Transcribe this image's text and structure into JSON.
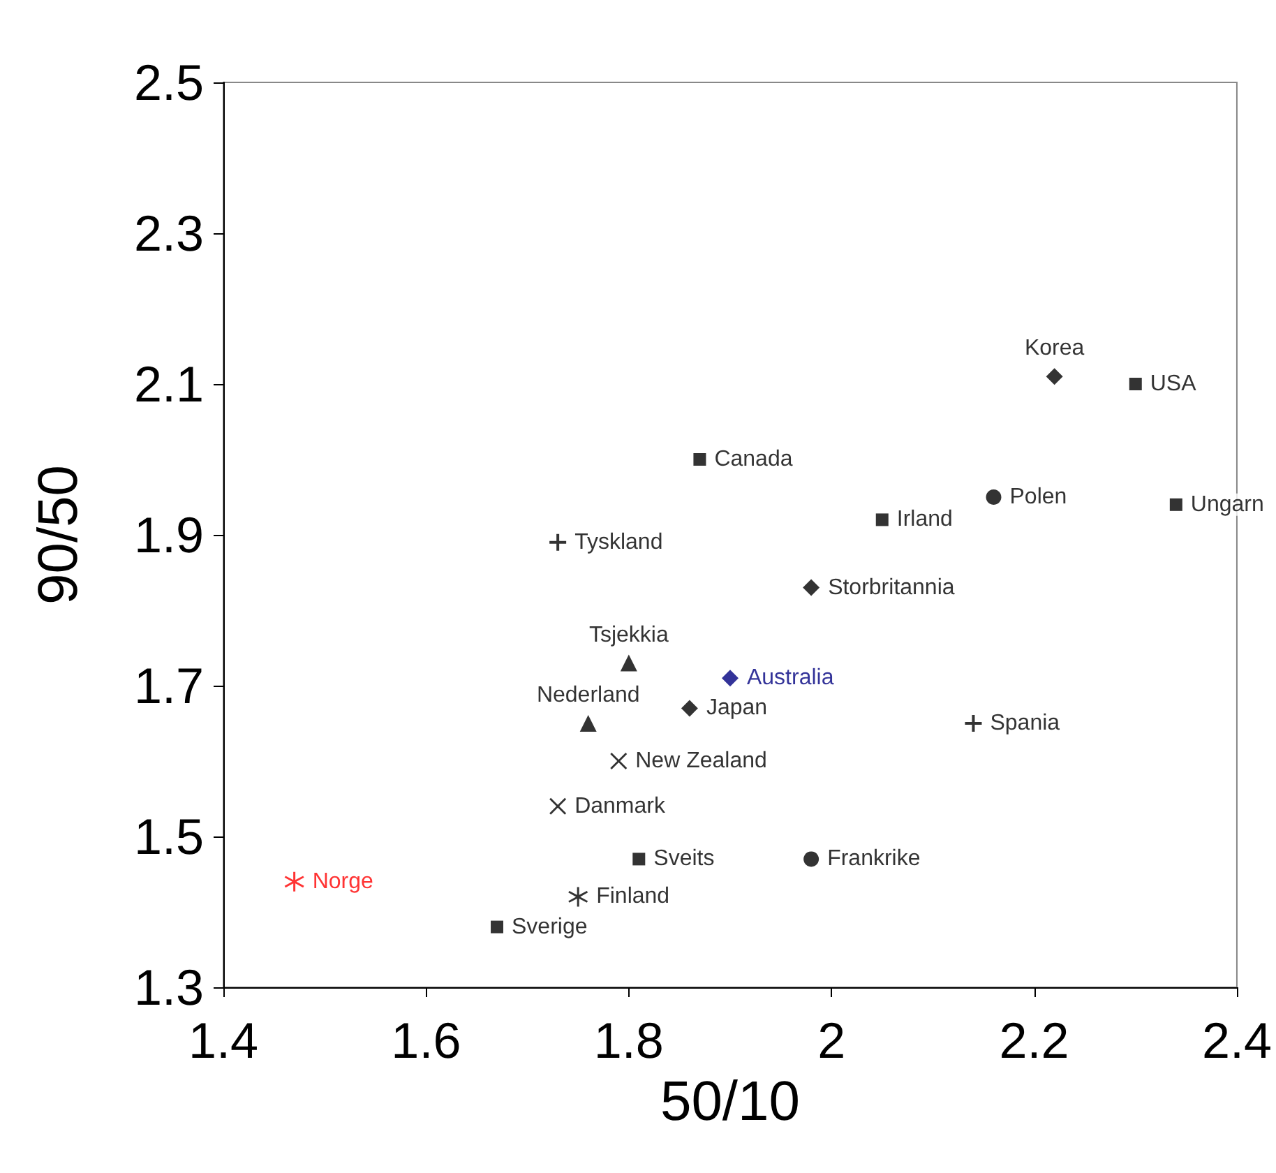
{
  "chart_data": {
    "type": "scatter",
    "xlabel": "50/10",
    "ylabel": "90/50",
    "xlim": [
      1.4,
      2.4
    ],
    "xticks": [
      1.4,
      1.6,
      1.8,
      {
        "value": 2,
        "label": "2"
      },
      2.2,
      2.4
    ],
    "ylim": [
      1.3,
      2.5
    ],
    "yticks": [
      1.3,
      1.5,
      1.7,
      1.9,
      2.1,
      2.3,
      2.5
    ],
    "grid": false,
    "series": [
      {
        "name": "Korea",
        "color": "#000000",
        "marker": "diamond",
        "x": [
          2.22
        ],
        "values": [
          2.11
        ]
      },
      {
        "name": "USA",
        "color": "#000000",
        "marker": "square",
        "x": [
          2.3
        ],
        "values": [
          2.1
        ]
      },
      {
        "name": "Canada",
        "color": "#000000",
        "marker": "square",
        "x": [
          1.87
        ],
        "values": [
          2.0
        ]
      },
      {
        "name": "Polen",
        "color": "#000000",
        "marker": "circle",
        "x": [
          2.16
        ],
        "values": [
          1.95
        ]
      },
      {
        "name": "Ungarn",
        "color": "#000000",
        "marker": "square",
        "x": [
          2.34
        ],
        "values": [
          1.94
        ]
      },
      {
        "name": "Irland",
        "color": "#000000",
        "marker": "square",
        "x": [
          2.05
        ],
        "values": [
          1.92
        ]
      },
      {
        "name": "Tyskland",
        "color": "#000000",
        "marker": "plus",
        "x": [
          1.73
        ],
        "values": [
          1.89
        ]
      },
      {
        "name": "Storbritannia",
        "color": "#000000",
        "marker": "diamond",
        "x": [
          1.98
        ],
        "values": [
          1.83
        ]
      },
      {
        "name": "Tsjekkia",
        "color": "#000000",
        "marker": "triangle",
        "x": [
          1.8
        ],
        "values": [
          1.73
        ]
      },
      {
        "name": "Australia",
        "color": "#000080",
        "marker": "diamond",
        "x": [
          1.9
        ],
        "values": [
          1.71
        ]
      },
      {
        "name": "Japan",
        "color": "#000000",
        "marker": "diamond",
        "x": [
          1.86
        ],
        "values": [
          1.67
        ]
      },
      {
        "name": "Nederland",
        "color": "#000000",
        "marker": "triangle",
        "x": [
          1.76
        ],
        "values": [
          1.65
        ]
      },
      {
        "name": "Spania",
        "color": "#000000",
        "marker": "plus",
        "x": [
          2.14
        ],
        "values": [
          1.65
        ]
      },
      {
        "name": "New Zealand",
        "color": "#000000",
        "marker": "cross",
        "x": [
          1.79
        ],
        "values": [
          1.6
        ]
      },
      {
        "name": "Danmark",
        "color": "#000000",
        "marker": "cross",
        "x": [
          1.73
        ],
        "values": [
          1.54
        ]
      },
      {
        "name": "Sveits",
        "color": "#000000",
        "marker": "square",
        "x": [
          1.81
        ],
        "values": [
          1.47
        ]
      },
      {
        "name": "Frankrike",
        "color": "#000000",
        "marker": "circle",
        "x": [
          1.98
        ],
        "values": [
          1.47
        ]
      },
      {
        "name": "Norge",
        "color": "#ff0000",
        "marker": "star",
        "x": [
          1.47
        ],
        "values": [
          1.44
        ]
      },
      {
        "name": "Finland",
        "color": "#000000",
        "marker": "star",
        "x": [
          1.75
        ],
        "values": [
          1.42
        ]
      },
      {
        "name": "Sverige",
        "color": "#000000",
        "marker": "square",
        "x": [
          1.67
        ],
        "values": [
          1.38
        ]
      }
    ]
  }
}
